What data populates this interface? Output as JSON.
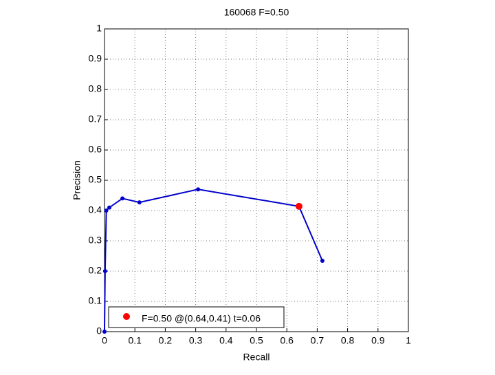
{
  "chart_data": {
    "type": "line",
    "title": "160068 F=0.50",
    "x_label": "Recall",
    "y_label": "Precision",
    "series": [
      {
        "color": "#0000cc",
        "x": [
          0,
          0.002,
          0.006,
          0.016,
          0.059,
          0.115,
          0.308,
          0.64,
          0.717
        ],
        "values": [
          0,
          0.2,
          0.4,
          0.41,
          0.44,
          0.427,
          0.47,
          0.414,
          0.234
        ]
      },
      {
        "name": "F=0.50 @(0.64,0.41) t=0.06",
        "color": "#ff0000",
        "x": [
          0.64
        ],
        "values": [
          0.414
        ]
      }
    ],
    "xlim": [
      0,
      1
    ],
    "ylim": [
      0,
      1
    ],
    "xticks": [
      0,
      0.1,
      0.2,
      0.3,
      0.4,
      0.5,
      0.6,
      0.7,
      0.8,
      0.9,
      1
    ],
    "yticks": [
      0,
      0.1,
      0.2,
      0.3,
      0.4,
      0.5,
      0.6,
      0.7,
      0.8,
      0.9,
      1
    ],
    "grid": true,
    "legend": "lower left"
  }
}
